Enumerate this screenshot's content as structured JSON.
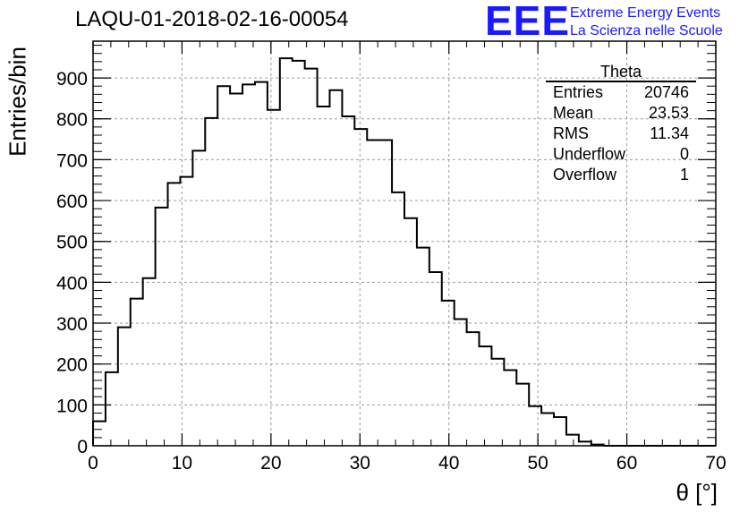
{
  "chart_data": {
    "type": "bar",
    "title": "LAQU-01-2018-02-16-00054",
    "xlabel": "θ [°]",
    "ylabel": "Entries/bin",
    "xlim": [
      0,
      70
    ],
    "ylim": [
      0,
      990
    ],
    "grid": true,
    "bin_edges_start": 0,
    "bin_width": 1.4,
    "values": [
      60,
      180,
      290,
      360,
      410,
      583,
      643,
      658,
      722,
      802,
      880,
      862,
      884,
      890,
      822,
      948,
      942,
      923,
      830,
      870,
      806,
      775,
      748,
      748,
      620,
      557,
      485,
      425,
      355,
      310,
      278,
      243,
      213,
      185,
      152,
      97,
      80,
      70,
      27,
      10,
      3,
      0,
      0,
      0,
      0,
      0,
      0,
      0,
      0,
      0
    ],
    "xticks": [
      "0",
      "10",
      "20",
      "30",
      "40",
      "50",
      "60",
      "70"
    ],
    "yticks": [
      "0",
      "100",
      "200",
      "300",
      "400",
      "500",
      "600",
      "700",
      "800",
      "900"
    ]
  },
  "stats_box": {
    "title": "Theta",
    "rows": [
      {
        "label": "Entries",
        "value": "20746"
      },
      {
        "label": "Mean",
        "value": "23.53"
      },
      {
        "label": "RMS",
        "value": "11.34"
      },
      {
        "label": "Underflow",
        "value": "0"
      },
      {
        "label": "Overflow",
        "value": "1"
      }
    ]
  },
  "logo": {
    "mark": "EEE",
    "line1": "Extreme Energy Events",
    "line2": "La Scienza nelle Scuole"
  },
  "colors": {
    "logo": "#1a1aff",
    "line": "#000000",
    "grid": "#9a9a9a"
  }
}
